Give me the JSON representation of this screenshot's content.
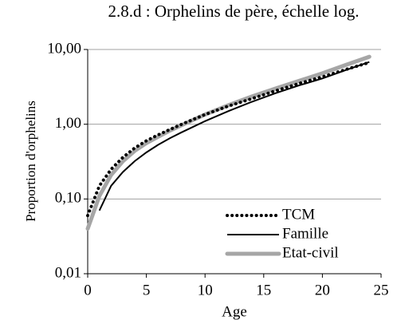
{
  "chart_data": {
    "type": "line",
    "title": "2.8.d : Orphelins de père, échelle log.",
    "xlabel": "Age",
    "ylabel": "Proportion d'orphelins",
    "x": [
      0,
      1,
      2,
      3,
      4,
      5,
      6,
      7,
      8,
      10,
      12,
      14,
      16,
      18,
      20,
      22,
      24
    ],
    "series": [
      {
        "name": "TCM",
        "color": "#000000",
        "style": "dotted",
        "values": [
          0.06,
          0.15,
          0.25,
          0.36,
          0.48,
          0.6,
          0.72,
          0.85,
          1.0,
          1.35,
          1.75,
          2.2,
          2.8,
          3.5,
          4.3,
          5.4,
          6.7
        ]
      },
      {
        "name": "Famille",
        "color": "#000000",
        "style": "solid",
        "values": [
          null,
          0.07,
          0.15,
          0.23,
          0.32,
          0.42,
          0.53,
          0.65,
          0.78,
          1.1,
          1.5,
          2.0,
          2.6,
          3.3,
          4.1,
          5.3,
          6.8
        ]
      },
      {
        "name": "Etat-civil",
        "color": "#a6a6a6",
        "style": "thick",
        "values": [
          0.04,
          0.11,
          0.21,
          0.32,
          0.44,
          0.56,
          0.68,
          0.82,
          0.97,
          1.35,
          1.8,
          2.35,
          3.0,
          3.8,
          4.8,
          6.2,
          8.0
        ]
      }
    ],
    "xlim": [
      0,
      25
    ],
    "xticks": [
      0,
      5,
      10,
      15,
      20,
      25
    ],
    "ylim": [
      0.01,
      10
    ],
    "ylog": true,
    "yticks": [
      {
        "value": 0.01,
        "label": "0,01"
      },
      {
        "value": 0.1,
        "label": "0,10"
      },
      {
        "value": 1,
        "label": "1,00"
      },
      {
        "value": 10,
        "label": "10,00"
      }
    ],
    "grid": true,
    "legend": "lower right"
  }
}
